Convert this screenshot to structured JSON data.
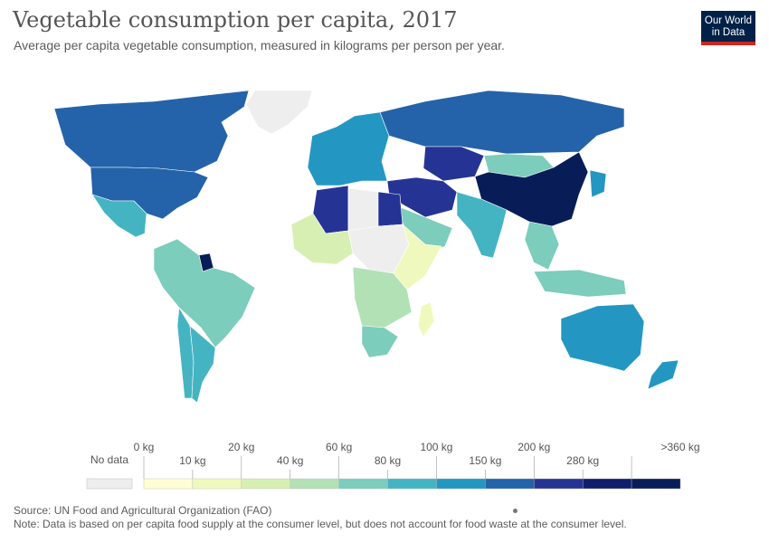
{
  "header": {
    "title": "Vegetable consumption per capita, 2017",
    "subtitle": "Average per capita vegetable consumption, measured in kilograms per person per year."
  },
  "logo": {
    "line1": "Our World",
    "line2": "in Data",
    "bg_color": "#002147",
    "bar_color": "#ce261e"
  },
  "legend": {
    "no_data_label": "No data",
    "no_data_color": "#eeeeee",
    "bins": [
      {
        "upper_label": "0 kg",
        "color": "#fffdd4"
      },
      {
        "upper_label": "10 kg",
        "color": "#f0f9bd"
      },
      {
        "upper_label": "20 kg",
        "color": "#d7efb3"
      },
      {
        "upper_label": "40 kg",
        "color": "#b2e1b6"
      },
      {
        "upper_label": "60 kg",
        "color": "#7ccdbb"
      },
      {
        "upper_label": "80 kg",
        "color": "#45b4c2"
      },
      {
        "upper_label": "100 kg",
        "color": "#2397c1"
      },
      {
        "upper_label": "150 kg",
        "color": "#2463a9"
      },
      {
        "upper_label": "200 kg",
        "color": "#253494"
      },
      {
        "upper_label": "280 kg",
        "color": "#0f1f6b"
      },
      {
        "upper_label": ">360 kg",
        "color": "#081d58"
      }
    ]
  },
  "map": {
    "regions": [
      {
        "name": "Canada",
        "color": "#2463a9"
      },
      {
        "name": "United States",
        "color": "#2463a9"
      },
      {
        "name": "Greenland",
        "color": "#eeeeee"
      },
      {
        "name": "Mexico",
        "color": "#45b4c2"
      },
      {
        "name": "South America",
        "color": "#7ccdbb"
      },
      {
        "name": "Chile",
        "color": "#45b4c2"
      },
      {
        "name": "Argentina",
        "color": "#45b4c2"
      },
      {
        "name": "Guyana",
        "color": "#081d58"
      },
      {
        "name": "Europe",
        "color": "#2397c1"
      },
      {
        "name": "Russia",
        "color": "#2463a9"
      },
      {
        "name": "Kazakhstan",
        "color": "#253494"
      },
      {
        "name": "Mongolia",
        "color": "#7ccdbb"
      },
      {
        "name": "China",
        "color": "#081d58"
      },
      {
        "name": "Middle East",
        "color": "#253494"
      },
      {
        "name": "Arabian Peninsula",
        "color": "#7ccdbb"
      },
      {
        "name": "India",
        "color": "#45b4c2"
      },
      {
        "name": "Southeast Asia",
        "color": "#7ccdbb"
      },
      {
        "name": "Japan",
        "color": "#2397c1"
      },
      {
        "name": "Indonesia",
        "color": "#7ccdbb"
      },
      {
        "name": "Australia",
        "color": "#2397c1"
      },
      {
        "name": "New Zealand",
        "color": "#2397c1"
      },
      {
        "name": "Algeria",
        "color": "#253494"
      },
      {
        "name": "Egypt",
        "color": "#253494"
      },
      {
        "name": "Libya",
        "color": "#eeeeee"
      },
      {
        "name": "West Africa",
        "color": "#d7efb3"
      },
      {
        "name": "Central Africa",
        "color": "#eeeeee"
      },
      {
        "name": "East Africa",
        "color": "#f0f9bd"
      },
      {
        "name": "Southern Africa",
        "color": "#b2e1b6"
      },
      {
        "name": "South Africa",
        "color": "#7ccdbb"
      },
      {
        "name": "Madagascar",
        "color": "#f0f9bd"
      }
    ]
  },
  "footer": {
    "source": "Source: UN Food and Agricultural Organization (FAO)",
    "note": "Note: Data is based on per capita food supply at the consumer level, but does not account for food waste at the consumer level."
  }
}
